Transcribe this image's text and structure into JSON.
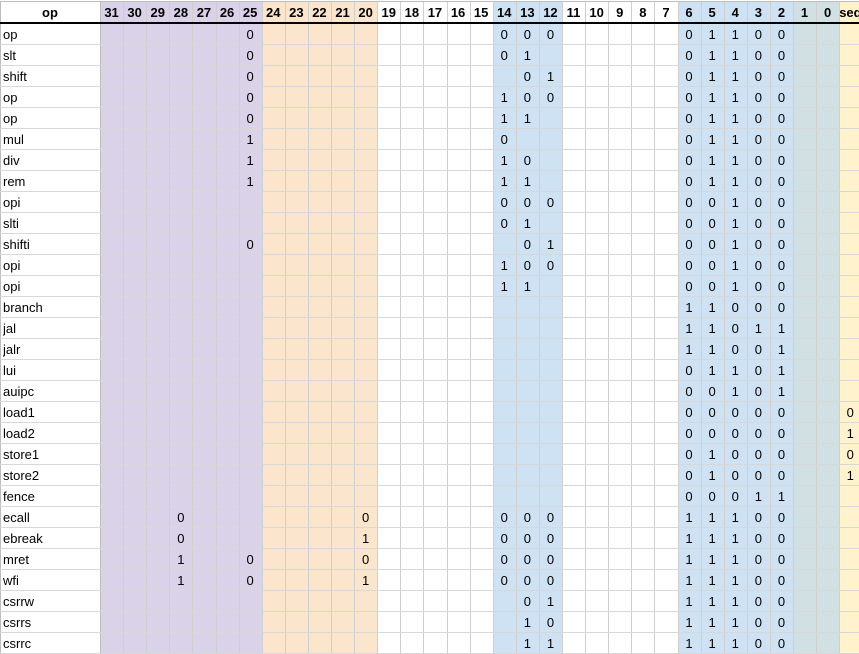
{
  "header": {
    "op": "op",
    "bits": [
      "31",
      "30",
      "29",
      "28",
      "27",
      "26",
      "25",
      "24",
      "23",
      "22",
      "21",
      "20",
      "19",
      "18",
      "17",
      "16",
      "15",
      "14",
      "13",
      "12",
      "11",
      "10",
      "9",
      "8",
      "7",
      "6",
      "5",
      "4",
      "3",
      "2",
      "1",
      "0"
    ],
    "seq": "seq"
  },
  "colors": {
    "purple": "#d9d2e9",
    "orange": "#fce5cd",
    "blue": "#cfe2f3",
    "green": "#d0e0e3",
    "yellow": "#fff2cc",
    "white": "#ffffff"
  },
  "rows": [
    {
      "op": "op",
      "values": {
        "25": "0",
        "14": "0",
        "13": "0",
        "12": "0",
        "6": "0",
        "5": "1",
        "4": "1",
        "3": "0",
        "2": "0"
      }
    },
    {
      "op": "slt",
      "values": {
        "25": "0",
        "14": "0",
        "13": "1",
        "6": "0",
        "5": "1",
        "4": "1",
        "3": "0",
        "2": "0"
      }
    },
    {
      "op": "shift",
      "values": {
        "25": "0",
        "13": "0",
        "12": "1",
        "6": "0",
        "5": "1",
        "4": "1",
        "3": "0",
        "2": "0"
      }
    },
    {
      "op": "op",
      "values": {
        "25": "0",
        "14": "1",
        "13": "0",
        "12": "0",
        "6": "0",
        "5": "1",
        "4": "1",
        "3": "0",
        "2": "0"
      }
    },
    {
      "op": "op",
      "values": {
        "25": "0",
        "14": "1",
        "13": "1",
        "6": "0",
        "5": "1",
        "4": "1",
        "3": "0",
        "2": "0"
      }
    },
    {
      "op": "mul",
      "values": {
        "25": "1",
        "14": "0",
        "6": "0",
        "5": "1",
        "4": "1",
        "3": "0",
        "2": "0"
      }
    },
    {
      "op": "div",
      "values": {
        "25": "1",
        "14": "1",
        "13": "0",
        "6": "0",
        "5": "1",
        "4": "1",
        "3": "0",
        "2": "0"
      }
    },
    {
      "op": "rem",
      "values": {
        "25": "1",
        "14": "1",
        "13": "1",
        "6": "0",
        "5": "1",
        "4": "1",
        "3": "0",
        "2": "0"
      }
    },
    {
      "op": "opi",
      "values": {
        "14": "0",
        "13": "0",
        "12": "0",
        "6": "0",
        "5": "0",
        "4": "1",
        "3": "0",
        "2": "0"
      }
    },
    {
      "op": "slti",
      "values": {
        "14": "0",
        "13": "1",
        "6": "0",
        "5": "0",
        "4": "1",
        "3": "0",
        "2": "0"
      }
    },
    {
      "op": "shifti",
      "values": {
        "25": "0",
        "13": "0",
        "12": "1",
        "6": "0",
        "5": "0",
        "4": "1",
        "3": "0",
        "2": "0"
      }
    },
    {
      "op": "opi",
      "values": {
        "14": "1",
        "13": "0",
        "12": "0",
        "6": "0",
        "5": "0",
        "4": "1",
        "3": "0",
        "2": "0"
      }
    },
    {
      "op": "opi",
      "values": {
        "14": "1",
        "13": "1",
        "6": "0",
        "5": "0",
        "4": "1",
        "3": "0",
        "2": "0"
      }
    },
    {
      "op": "branch",
      "values": {
        "6": "1",
        "5": "1",
        "4": "0",
        "3": "0",
        "2": "0"
      }
    },
    {
      "op": "jal",
      "values": {
        "6": "1",
        "5": "1",
        "4": "0",
        "3": "1",
        "2": "1"
      }
    },
    {
      "op": "jalr",
      "values": {
        "6": "1",
        "5": "1",
        "4": "0",
        "3": "0",
        "2": "1"
      }
    },
    {
      "op": "lui",
      "values": {
        "6": "0",
        "5": "1",
        "4": "1",
        "3": "0",
        "2": "1"
      }
    },
    {
      "op": "auipc",
      "values": {
        "6": "0",
        "5": "0",
        "4": "1",
        "3": "0",
        "2": "1"
      }
    },
    {
      "op": "load1",
      "values": {
        "6": "0",
        "5": "0",
        "4": "0",
        "3": "0",
        "2": "0",
        "seq": "0"
      }
    },
    {
      "op": "load2",
      "values": {
        "6": "0",
        "5": "0",
        "4": "0",
        "3": "0",
        "2": "0",
        "seq": "1"
      }
    },
    {
      "op": "store1",
      "values": {
        "6": "0",
        "5": "1",
        "4": "0",
        "3": "0",
        "2": "0",
        "seq": "0"
      }
    },
    {
      "op": "store2",
      "values": {
        "6": "0",
        "5": "1",
        "4": "0",
        "3": "0",
        "2": "0",
        "seq": "1"
      }
    },
    {
      "op": "fence",
      "values": {
        "6": "0",
        "5": "0",
        "4": "0",
        "3": "1",
        "2": "1"
      }
    },
    {
      "op": "ecall",
      "values": {
        "28": "0",
        "20": "0",
        "14": "0",
        "13": "0",
        "12": "0",
        "6": "1",
        "5": "1",
        "4": "1",
        "3": "0",
        "2": "0"
      }
    },
    {
      "op": "ebreak",
      "values": {
        "28": "0",
        "20": "1",
        "14": "0",
        "13": "0",
        "12": "0",
        "6": "1",
        "5": "1",
        "4": "1",
        "3": "0",
        "2": "0"
      }
    },
    {
      "op": "mret",
      "values": {
        "28": "1",
        "25": "0",
        "20": "0",
        "14": "0",
        "13": "0",
        "12": "0",
        "6": "1",
        "5": "1",
        "4": "1",
        "3": "0",
        "2": "0"
      }
    },
    {
      "op": "wfi",
      "values": {
        "28": "1",
        "25": "0",
        "20": "1",
        "14": "0",
        "13": "0",
        "12": "0",
        "6": "1",
        "5": "1",
        "4": "1",
        "3": "0",
        "2": "0"
      }
    },
    {
      "op": "csrrw",
      "values": {
        "13": "0",
        "12": "1",
        "6": "1",
        "5": "1",
        "4": "1",
        "3": "0",
        "2": "0"
      }
    },
    {
      "op": "csrrs",
      "values": {
        "13": "1",
        "12": "0",
        "6": "1",
        "5": "1",
        "4": "1",
        "3": "0",
        "2": "0"
      }
    },
    {
      "op": "csrrc",
      "values": {
        "13": "1",
        "12": "1",
        "6": "1",
        "5": "1",
        "4": "1",
        "3": "0",
        "2": "0"
      }
    }
  ]
}
